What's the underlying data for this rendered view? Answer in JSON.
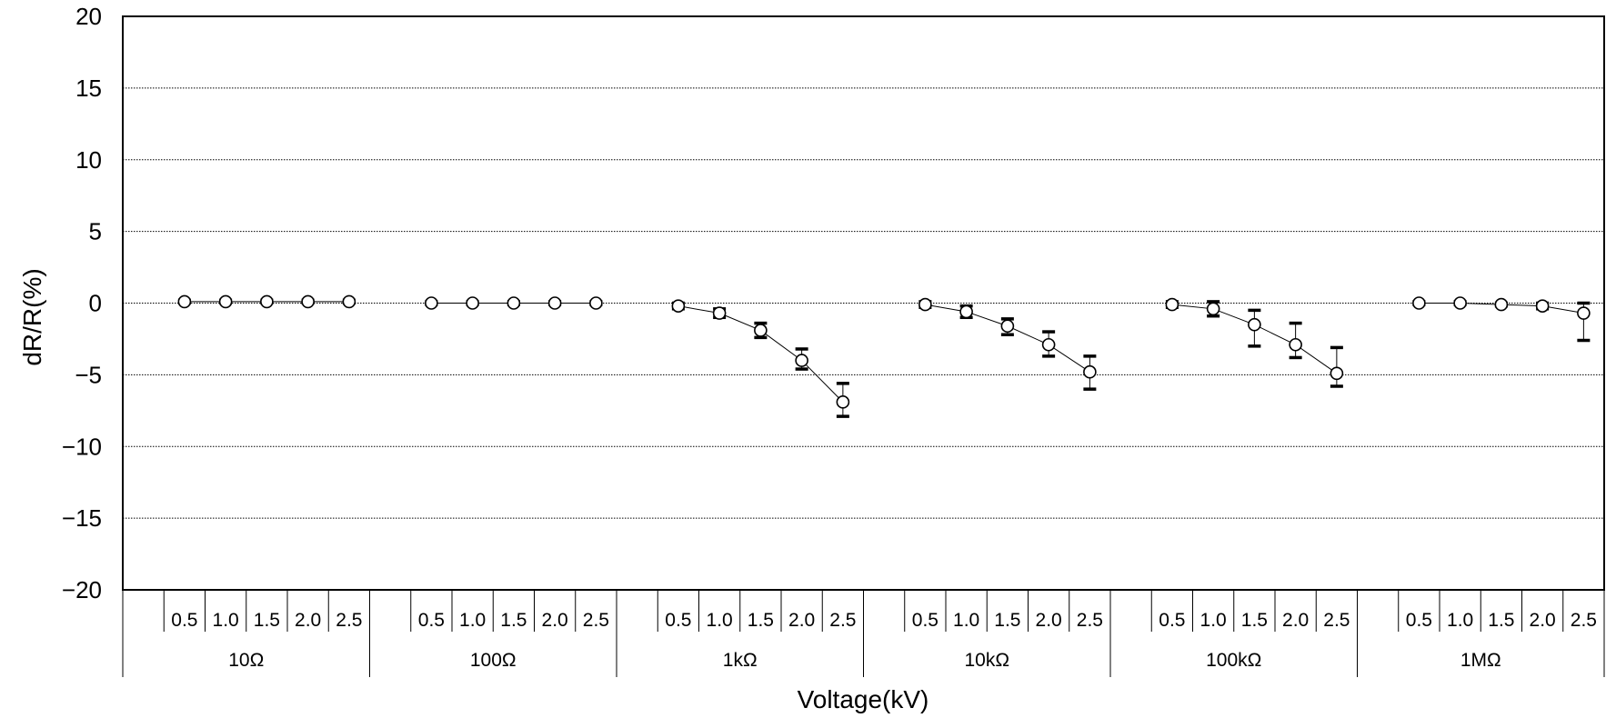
{
  "chart_data": {
    "type": "scatter",
    "title": "",
    "xlabel": "Voltage(kV)",
    "ylabel": "dR/R(%)",
    "ylim": [
      -20,
      20
    ],
    "yticks": [
      "20",
      "15",
      "10",
      "5",
      "0",
      "−5",
      "−10",
      "−15",
      "−20"
    ],
    "ytick_values": [
      20,
      15,
      10,
      5,
      0,
      -5,
      -10,
      -15,
      -20
    ],
    "grid": "horizontal dotted",
    "legend": "none",
    "voltages": [
      "0.5",
      "1.0",
      "1.5",
      "2.0",
      "2.5"
    ],
    "groups": [
      {
        "label": "10Ω",
        "values": [
          0.1,
          0.1,
          0.1,
          0.1,
          0.1
        ],
        "err_low": [
          0.1,
          0.1,
          0.1,
          0.1,
          0.1
        ],
        "err_high": [
          0.1,
          0.1,
          0.1,
          0.1,
          0.1
        ]
      },
      {
        "label": "100Ω",
        "values": [
          0.0,
          0.0,
          0.0,
          0.0,
          0.0
        ],
        "err_low": [
          0.1,
          0.1,
          0.1,
          0.1,
          0.1
        ],
        "err_high": [
          0.1,
          0.1,
          0.1,
          0.1,
          0.1
        ]
      },
      {
        "label": "1kΩ",
        "values": [
          -0.2,
          -0.7,
          -1.9,
          -4.0,
          -6.9
        ],
        "err_low": [
          0.2,
          0.3,
          0.5,
          0.6,
          1.0
        ],
        "err_high": [
          0.2,
          0.3,
          0.5,
          0.8,
          1.3
        ]
      },
      {
        "label": "10kΩ",
        "values": [
          -0.1,
          -0.6,
          -1.6,
          -2.9,
          -4.8
        ],
        "err_low": [
          0.2,
          0.4,
          0.6,
          0.8,
          1.2
        ],
        "err_high": [
          0.2,
          0.4,
          0.5,
          0.9,
          1.1
        ]
      },
      {
        "label": "100kΩ",
        "values": [
          -0.1,
          -0.4,
          -1.5,
          -2.9,
          -4.9
        ],
        "err_low": [
          0.2,
          0.5,
          1.5,
          0.9,
          0.9
        ],
        "err_high": [
          0.2,
          0.5,
          1.0,
          1.5,
          1.8
        ]
      },
      {
        "label": "1MΩ",
        "values": [
          0.0,
          0.0,
          -0.1,
          -0.2,
          -0.7
        ],
        "err_low": [
          0.1,
          0.1,
          0.1,
          0.2,
          1.9
        ],
        "err_high": [
          0.1,
          0.1,
          0.1,
          0.2,
          0.7
        ]
      }
    ]
  },
  "colors": {
    "line": "#000000",
    "grid": "#000000",
    "background": "#ffffff"
  }
}
